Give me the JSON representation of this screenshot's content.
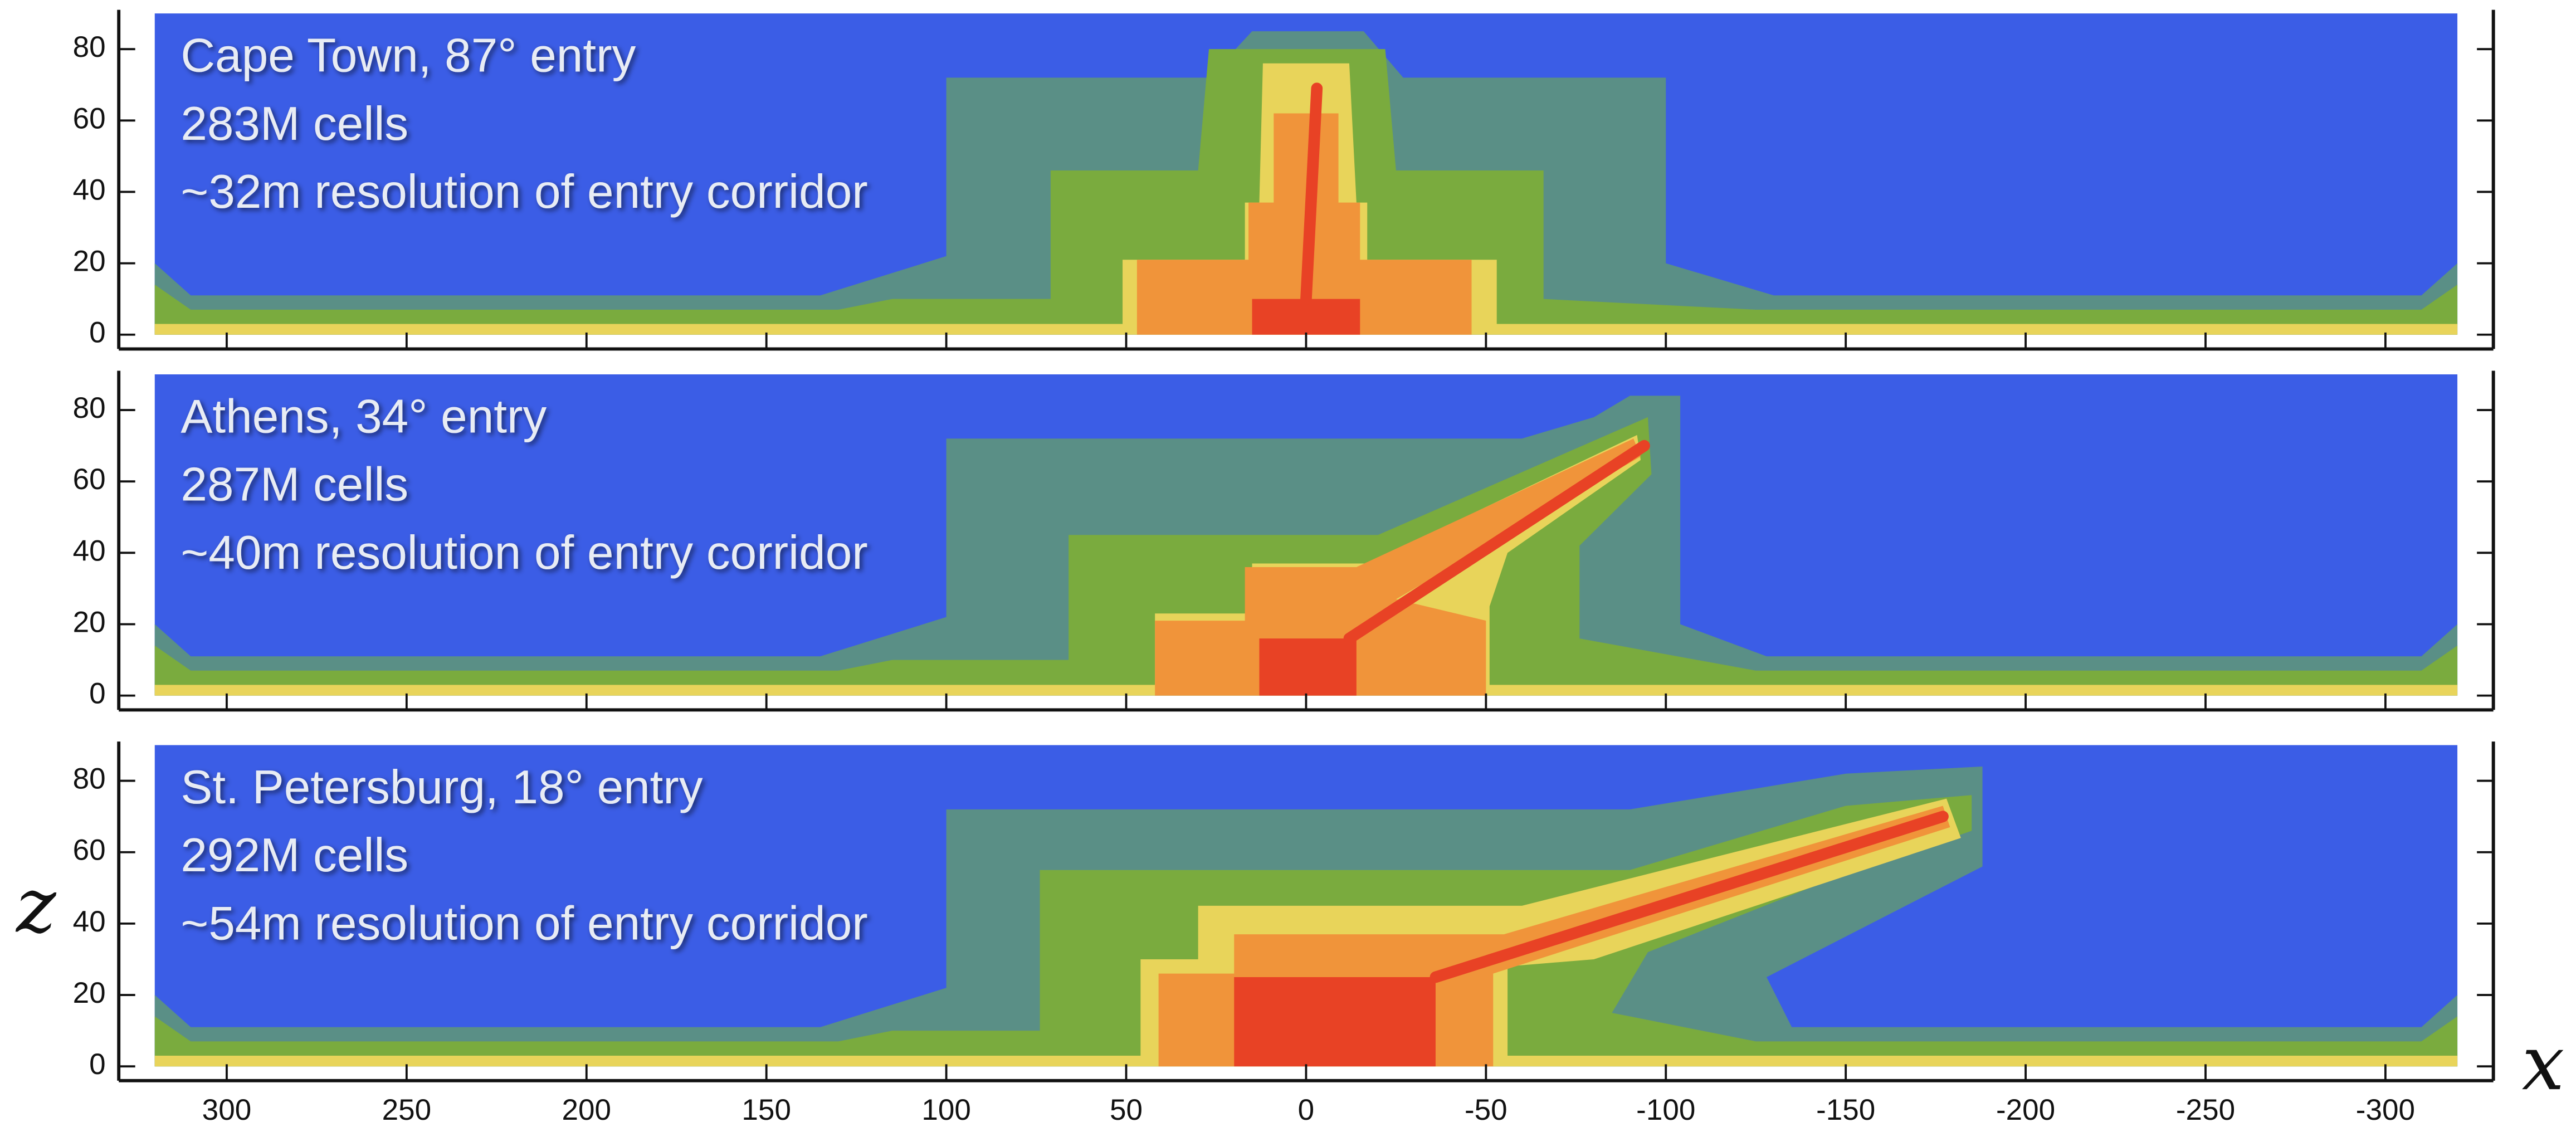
{
  "chart_data": {
    "type": "mesh",
    "xlabel": "x",
    "ylabel": "z",
    "xlim": [
      330,
      -330
    ],
    "xticks": [
      300,
      250,
      200,
      150,
      100,
      50,
      0,
      -50,
      -100,
      -150,
      -200,
      -250,
      -300
    ],
    "panels": [
      {
        "annotations": [
          "Cape Town, 87° entry",
          "283M cells",
          "~32m resolution of entry corridor"
        ],
        "ylim": [
          -4,
          91
        ],
        "yticks": [
          0,
          20,
          40,
          60,
          80
        ],
        "regions": [
          {
            "color": "#3b5de6",
            "points": [
              [
                320,
                0
              ],
              [
                320,
                90
              ],
              [
                -320,
                90
              ],
              [
                -320,
                0
              ]
            ]
          },
          {
            "color": "#5a8f86",
            "points": [
              [
                320,
                0
              ],
              [
                320,
                20
              ],
              [
                310,
                11
              ],
              [
                135,
                11
              ],
              [
                100,
                22
              ],
              [
                100,
                72
              ],
              [
                27,
                72
              ],
              [
                15,
                85
              ],
              [
                -16,
                85
              ],
              [
                -27,
                72
              ],
              [
                -100,
                72
              ],
              [
                -100,
                20
              ],
              [
                -130,
                11
              ],
              [
                -310,
                11
              ],
              [
                -320,
                20
              ],
              [
                -320,
                0
              ]
            ]
          },
          {
            "color": "#7aab3e",
            "points": [
              [
                320,
                0
              ],
              [
                320,
                14
              ],
              [
                310,
                7
              ],
              [
                130,
                7
              ],
              [
                115,
                10
              ],
              [
                71,
                10
              ],
              [
                71,
                46
              ],
              [
                30,
                46
              ],
              [
                27,
                80
              ],
              [
                -22,
                80
              ],
              [
                -25,
                46
              ],
              [
                -66,
                46
              ],
              [
                -66,
                10
              ],
              [
                -125,
                7
              ],
              [
                -310,
                7
              ],
              [
                -320,
                14
              ],
              [
                -320,
                0
              ]
            ]
          },
          {
            "color": "#e8d45a",
            "points": [
              [
                320,
                0
              ],
              [
                320,
                3
              ],
              [
                51,
                3
              ],
              [
                51,
                21
              ],
              [
                17,
                21
              ],
              [
                17,
                37
              ],
              [
                13,
                37
              ],
              [
                12,
                76
              ],
              [
                -12,
                76
              ],
              [
                -14,
                37
              ],
              [
                -17,
                37
              ],
              [
                -17,
                21
              ],
              [
                -53,
                21
              ],
              [
                -53,
                3
              ],
              [
                -320,
                3
              ],
              [
                -320,
                0
              ]
            ]
          },
          {
            "color": "#f0943a",
            "points": [
              [
                47,
                0
              ],
              [
                47,
                21
              ],
              [
                16,
                21
              ],
              [
                16,
                37
              ],
              [
                9,
                37
              ],
              [
                9,
                62
              ],
              [
                -9,
                62
              ],
              [
                -9,
                37
              ],
              [
                -15,
                37
              ],
              [
                -15,
                21
              ],
              [
                -46,
                21
              ],
              [
                -46,
                0
              ]
            ]
          },
          {
            "color": "#e84225",
            "points": [
              [
                15,
                0
              ],
              [
                15,
                10
              ],
              [
                -15,
                10
              ],
              [
                -15,
                0
              ]
            ]
          }
        ],
        "corridor": {
          "color": "#e84225",
          "x": [
            0,
            -3
          ],
          "z": [
            10,
            69
          ]
        }
      },
      {
        "annotations": [
          "Athens, 34° entry",
          "287M cells",
          "~40m resolution of entry corridor"
        ],
        "ylim": [
          -4,
          91
        ],
        "yticks": [
          0,
          20,
          40,
          60,
          80
        ],
        "regions": [
          {
            "color": "#3b5de6",
            "points": [
              [
                320,
                0
              ],
              [
                320,
                90
              ],
              [
                -320,
                90
              ],
              [
                -320,
                0
              ]
            ]
          },
          {
            "color": "#5a8f86",
            "points": [
              [
                320,
                0
              ],
              [
                320,
                20
              ],
              [
                310,
                11
              ],
              [
                135,
                11
              ],
              [
                100,
                22
              ],
              [
                100,
                72
              ],
              [
                -60,
                72
              ],
              [
                -80,
                78
              ],
              [
                -90,
                84
              ],
              [
                -104,
                84
              ],
              [
                -104,
                20
              ],
              [
                -128,
                11
              ],
              [
                -310,
                11
              ],
              [
                -320,
                20
              ],
              [
                -320,
                0
              ]
            ]
          },
          {
            "color": "#7aab3e",
            "points": [
              [
                320,
                0
              ],
              [
                320,
                14
              ],
              [
                310,
                7
              ],
              [
                130,
                7
              ],
              [
                115,
                10
              ],
              [
                66,
                10
              ],
              [
                66,
                45
              ],
              [
                -20,
                45
              ],
              [
                -95,
                78
              ],
              [
                -96,
                62
              ],
              [
                -76,
                42
              ],
              [
                -76,
                16
              ],
              [
                -125,
                7
              ],
              [
                -310,
                7
              ],
              [
                -320,
                14
              ],
              [
                -320,
                0
              ]
            ]
          },
          {
            "color": "#e8d45a",
            "points": [
              [
                320,
                0
              ],
              [
                320,
                3
              ],
              [
                42,
                3
              ],
              [
                42,
                23
              ],
              [
                15,
                23
              ],
              [
                15,
                37
              ],
              [
                -17,
                37
              ],
              [
                -92,
                73
              ],
              [
                -93,
                66
              ],
              [
                -56,
                40
              ],
              [
                -51,
                25
              ],
              [
                -51,
                3
              ],
              [
                -320,
                3
              ],
              [
                -320,
                0
              ]
            ]
          },
          {
            "color": "#f0943a",
            "points": [
              [
                42,
                0
              ],
              [
                42,
                21
              ],
              [
                17,
                21
              ],
              [
                17,
                36
              ],
              [
                -14,
                36
              ],
              [
                -91,
                72
              ],
              [
                -93,
                67
              ],
              [
                -25,
                27
              ],
              [
                -50,
                21
              ],
              [
                -50,
                0
              ]
            ]
          },
          {
            "color": "#e84225",
            "points": [
              [
                13,
                0
              ],
              [
                13,
                16
              ],
              [
                -14,
                16
              ],
              [
                -14,
                0
              ]
            ]
          }
        ],
        "corridor": {
          "color": "#e84225",
          "x": [
            -12,
            -94
          ],
          "z": [
            16,
            70
          ]
        }
      },
      {
        "annotations": [
          "St. Petersburg, 18° entry",
          "292M cells",
          "~54m resolution of entry corridor"
        ],
        "ylim": [
          -4,
          91
        ],
        "yticks": [
          0,
          20,
          40,
          60,
          80
        ],
        "regions": [
          {
            "color": "#3b5de6",
            "points": [
              [
                320,
                0
              ],
              [
                320,
                90
              ],
              [
                -320,
                90
              ],
              [
                -320,
                0
              ]
            ]
          },
          {
            "color": "#5a8f86",
            "points": [
              [
                320,
                0
              ],
              [
                320,
                20
              ],
              [
                310,
                11
              ],
              [
                135,
                11
              ],
              [
                100,
                22
              ],
              [
                100,
                72
              ],
              [
                -90,
                72
              ],
              [
                -150,
                82
              ],
              [
                -188,
                84
              ],
              [
                -188,
                56
              ],
              [
                -128,
                25
              ],
              [
                -135,
                11
              ],
              [
                -310,
                11
              ],
              [
                -320,
                20
              ],
              [
                -320,
                0
              ]
            ]
          },
          {
            "color": "#7aab3e",
            "points": [
              [
                320,
                0
              ],
              [
                320,
                14
              ],
              [
                310,
                7
              ],
              [
                130,
                7
              ],
              [
                115,
                10
              ],
              [
                74,
                10
              ],
              [
                74,
                55
              ],
              [
                -90,
                55
              ],
              [
                -150,
                73
              ],
              [
                -185,
                76
              ],
              [
                -185,
                66
              ],
              [
                -140,
                50
              ],
              [
                -95,
                32
              ],
              [
                -85,
                15
              ],
              [
                -125,
                7
              ],
              [
                -310,
                7
              ],
              [
                -320,
                14
              ],
              [
                -320,
                0
              ]
            ]
          },
          {
            "color": "#e8d45a",
            "points": [
              [
                320,
                0
              ],
              [
                320,
                3
              ],
              [
                46,
                3
              ],
              [
                46,
                30
              ],
              [
                30,
                30
              ],
              [
                30,
                45
              ],
              [
                -60,
                45
              ],
              [
                -178,
                75
              ],
              [
                -182,
                64
              ],
              [
                -80,
                30
              ],
              [
                -56,
                28
              ],
              [
                -56,
                3
              ],
              [
                -320,
                3
              ],
              [
                -320,
                0
              ]
            ]
          },
          {
            "color": "#f0943a",
            "points": [
              [
                41,
                0
              ],
              [
                41,
                26
              ],
              [
                20,
                26
              ],
              [
                20,
                37
              ],
              [
                -55,
                37
              ],
              [
                -177,
                73
              ],
              [
                -179,
                67
              ],
              [
                -52,
                26
              ],
              [
                -52,
                0
              ]
            ]
          },
          {
            "color": "#e84225",
            "points": [
              [
                20,
                0
              ],
              [
                20,
                25
              ],
              [
                -36,
                25
              ],
              [
                -36,
                0
              ]
            ]
          }
        ],
        "corridor": {
          "color": "#e84225",
          "x": [
            -36,
            -177
          ],
          "z": [
            25,
            70
          ]
        }
      }
    ]
  }
}
